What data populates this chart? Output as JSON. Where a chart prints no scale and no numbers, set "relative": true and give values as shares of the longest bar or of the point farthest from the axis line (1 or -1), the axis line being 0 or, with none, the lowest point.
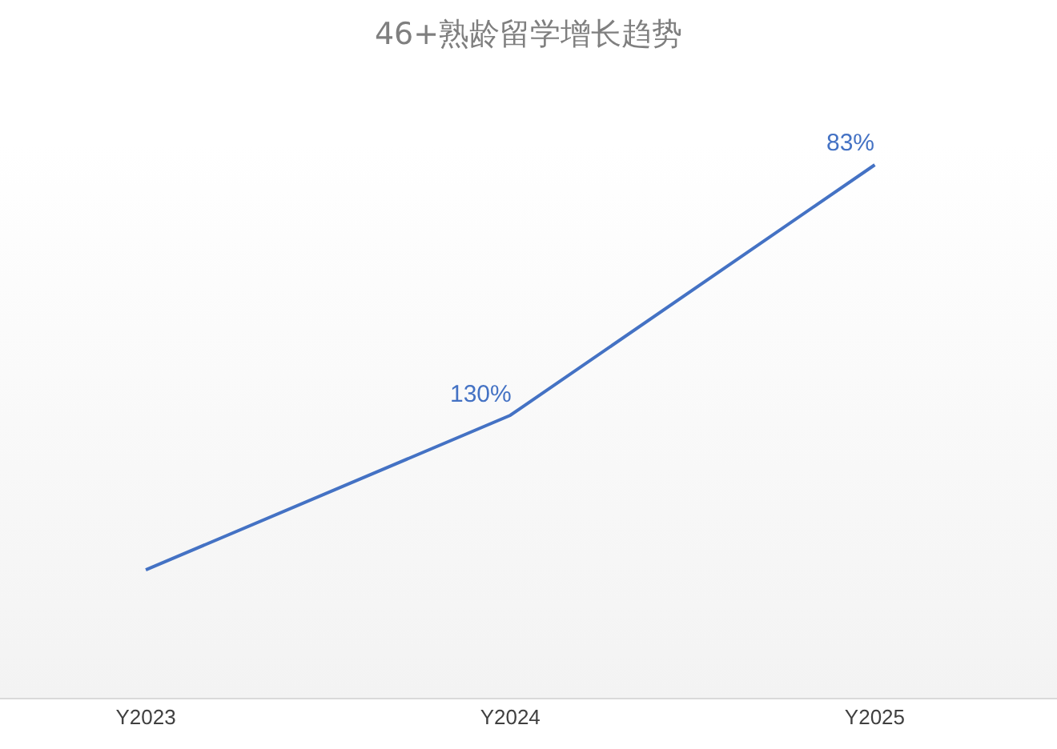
{
  "chart_data": {
    "type": "line",
    "title": "46+熟龄留学增长趋势",
    "categories": [
      "Y2023",
      "Y2024",
      "Y2025"
    ],
    "relative": true,
    "series": [
      {
        "color": "#4472c4",
        "values": [
          0.24,
          0.53,
          1
        ]
      }
    ],
    "annotations": [
      {
        "text": "130%",
        "x": "Y2024",
        "y": 0.53
      },
      {
        "text": "83%",
        "x": "Y2025",
        "y": 1
      }
    ],
    "marker": "none",
    "line_style": "solid",
    "grid": false
  }
}
